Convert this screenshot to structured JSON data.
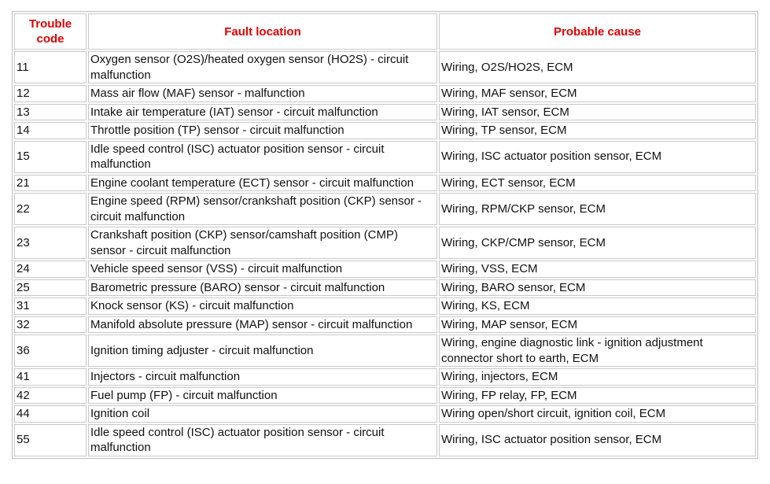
{
  "table": {
    "header": [
      "Trouble code",
      "Fault location",
      "Probable cause"
    ],
    "rows": [
      [
        "11",
        "Oxygen sensor (O2S)/heated oxygen sensor (HO2S) - circuit malfunction",
        "Wiring, O2S/HO2S, ECM"
      ],
      [
        "12",
        "Mass air flow (MAF) sensor - malfunction",
        "Wiring, MAF sensor, ECM"
      ],
      [
        "13",
        "Intake air temperature (IAT) sensor - circuit malfunction",
        "Wiring, IAT sensor, ECM"
      ],
      [
        "14",
        "Throttle position (TP) sensor - circuit malfunction",
        "Wiring, TP sensor, ECM"
      ],
      [
        "15",
        "Idle speed control (ISC) actuator position sensor - circuit malfunction",
        "Wiring, ISC actuator position sensor, ECM"
      ],
      [
        "21",
        "Engine coolant temperature (ECT) sensor - circuit malfunction",
        "Wiring, ECT sensor, ECM"
      ],
      [
        "22",
        "Engine speed (RPM) sensor/crankshaft position (CKP) sensor - circuit malfunction",
        "Wiring, RPM/CKP sensor, ECM"
      ],
      [
        "23",
        "Crankshaft position (CKP) sensor/camshaft position (CMP) sensor - circuit malfunction",
        "Wiring, CKP/CMP sensor, ECM"
      ],
      [
        "24",
        "Vehicle speed sensor (VSS) - circuit malfunction",
        "Wiring, VSS, ECM"
      ],
      [
        "25",
        "Barometric pressure (BARO) sensor - circuit malfunction",
        "Wiring, BARO sensor, ECM"
      ],
      [
        "31",
        "Knock sensor (KS) - circuit malfunction",
        "Wiring, KS, ECM"
      ],
      [
        "32",
        "Manifold absolute pressure (MAP) sensor - circuit malfunction",
        "Wiring, MAP sensor, ECM"
      ],
      [
        "36",
        "Ignition timing adjuster - circuit malfunction",
        "Wiring, engine diagnostic link - ignition adjustment connector short to earth, ECM"
      ],
      [
        "41",
        "Injectors - circuit malfunction",
        "Wiring, injectors, ECM"
      ],
      [
        "42",
        "Fuel pump (FP) - circuit malfunction",
        "Wiring, FP relay, FP, ECM"
      ],
      [
        "44",
        "Ignition coil",
        "Wiring open/short circuit, ignition coil, ECM"
      ],
      [
        "55",
        "Idle speed control (ISC) actuator position sensor - circuit malfunction",
        "Wiring, ISC actuator position sensor, ECM"
      ]
    ]
  }
}
